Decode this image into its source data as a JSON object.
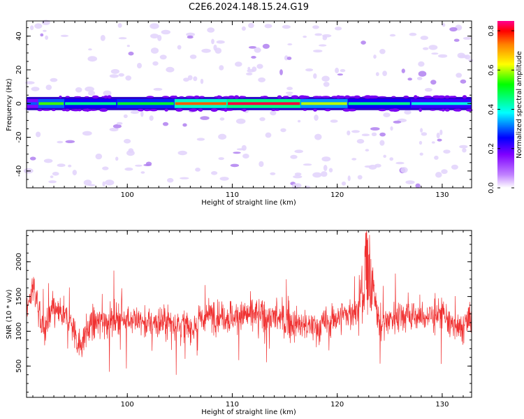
{
  "title": "C2E6.2024.148.15.24.G19",
  "chart_data": [
    {
      "type": "heatmap",
      "xlabel": "Height of straight line (km)",
      "ylabel": "Frequency (Hz)",
      "xlim": [
        90.4,
        132.8
      ],
      "ylim": [
        -50,
        49
      ],
      "xticks": [
        100,
        110,
        120,
        130
      ],
      "yticks": [
        -40,
        -20,
        0,
        20,
        40
      ],
      "xtick_labels": [
        "100",
        "110",
        "120",
        "130"
      ],
      "ytick_labels": [
        "-40",
        "-20",
        "0",
        "20",
        "40"
      ],
      "colorbar": {
        "label": "Normalized spectral amplitude",
        "range": [
          0,
          0.85
        ],
        "ticks": [
          0.0,
          0.2,
          0.4,
          0.6,
          0.8
        ],
        "tick_labels": [
          "0.0",
          "0.2",
          "0.4",
          "0.6",
          "0.8"
        ],
        "colors": [
          "#ffffff",
          "#8800ff",
          "#0000ff",
          "#00ffff",
          "#00ff00",
          "#ffff00",
          "#ff8800",
          "#ff0000",
          "#ff0088"
        ]
      },
      "band": {
        "center_hz": 0,
        "halfwidth_hz": 3.5,
        "segments": [
          {
            "x0": 90.4,
            "x1": 91.5,
            "level": 0.3
          },
          {
            "x0": 91.5,
            "x1": 94.0,
            "level": 0.55
          },
          {
            "x0": 94.0,
            "x1": 99.0,
            "level": 0.45
          },
          {
            "x0": 99.0,
            "x1": 104.5,
            "level": 0.5
          },
          {
            "x0": 104.5,
            "x1": 109.5,
            "level": 0.75
          },
          {
            "x0": 109.5,
            "x1": 116.5,
            "level": 0.82
          },
          {
            "x0": 116.5,
            "x1": 121.0,
            "level": 0.6
          },
          {
            "x0": 121.0,
            "x1": 127.0,
            "level": 0.45
          },
          {
            "x0": 127.0,
            "x1": 132.8,
            "level": 0.4
          }
        ]
      }
    },
    {
      "type": "line",
      "xlabel": "Height of straight line (km)",
      "ylabel": "SNR (10 * v/v)",
      "xlim": [
        90.4,
        132.8
      ],
      "ylim": [
        50,
        2450
      ],
      "xticks": [
        100,
        110,
        120,
        130
      ],
      "yticks": [
        500,
        1000,
        1500,
        2000
      ],
      "xtick_labels": [
        "100",
        "110",
        "120",
        "130"
      ],
      "ytick_labels": [
        "500",
        "1000",
        "1500",
        "2000"
      ],
      "color": "#f03030",
      "baseline": 1150,
      "spread": 320,
      "series_points": [
        [
          90.4,
          1200
        ],
        [
          91.0,
          1700
        ],
        [
          92.0,
          1000
        ],
        [
          93.0,
          1300
        ],
        [
          94.5,
          1150
        ],
        [
          95.5,
          800
        ],
        [
          96.5,
          1100
        ],
        [
          98.0,
          1150
        ],
        [
          100.0,
          1200
        ],
        [
          102.0,
          1100
        ],
        [
          104.0,
          1150
        ],
        [
          106.0,
          1050
        ],
        [
          108.0,
          1250
        ],
        [
          110.0,
          1200
        ],
        [
          112.0,
          1250
        ],
        [
          114.0,
          1200
        ],
        [
          116.0,
          1100
        ],
        [
          118.0,
          1050
        ],
        [
          120.0,
          1200
        ],
        [
          122.0,
          1300
        ],
        [
          122.8,
          2400
        ],
        [
          124.0,
          1100
        ],
        [
          126.0,
          1250
        ],
        [
          128.0,
          1200
        ],
        [
          130.0,
          1250
        ],
        [
          131.5,
          1000
        ],
        [
          132.8,
          1200
        ]
      ]
    }
  ]
}
